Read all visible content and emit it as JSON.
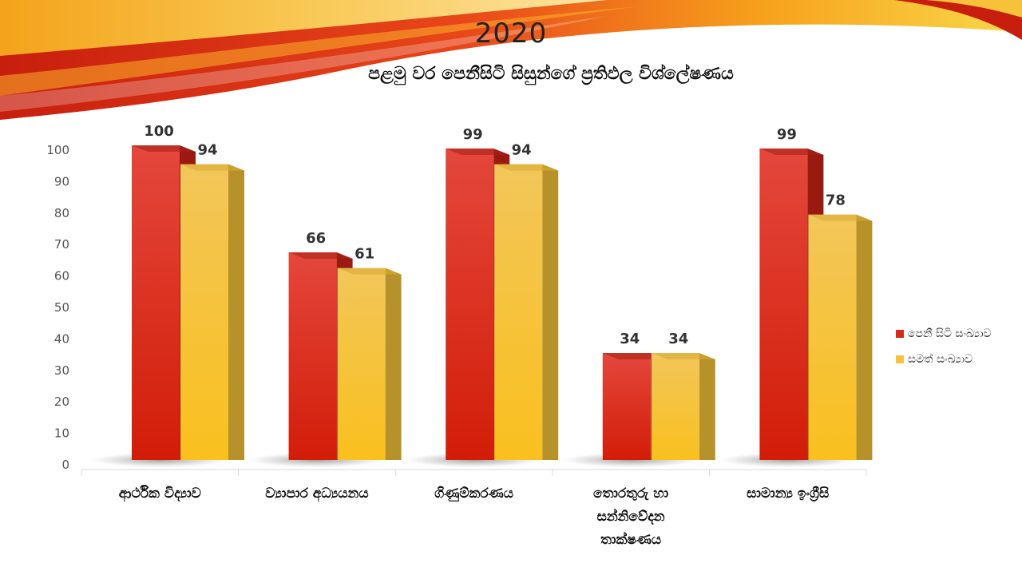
{
  "title": "2020",
  "subtitle": "පළමු වර පෙනීසිටි සිසුන්ගේ ප්‍රතිඵල විශ්ලේෂණය",
  "chart_data": {
    "type": "bar",
    "categories": [
      "ආර්ථික විද්‍යාව",
      "ව්‍යාපාර අධ්‍යයනය",
      "ගිණුම්කරණය",
      "තොරතුරු හා සන්නිවේදන තාක්ෂණය",
      "සාමාන්‍ය ඉංග්‍රීසි"
    ],
    "series": [
      {
        "name": "පෙනී සිටි සංඛ්‍යාව",
        "values": [
          100,
          66,
          99,
          34,
          99
        ],
        "color": "#d42a1a"
      },
      {
        "name": "සමත් සංඛ්‍යාව",
        "values": [
          94,
          61,
          94,
          34,
          78
        ],
        "color": "#f5c43a"
      }
    ],
    "ylim": [
      0,
      100
    ],
    "yticks": [
      0,
      10,
      20,
      30,
      40,
      50,
      60,
      70,
      80,
      90,
      100
    ],
    "data_labels": true,
    "legend": "right",
    "grid": false,
    "style": "3d"
  }
}
